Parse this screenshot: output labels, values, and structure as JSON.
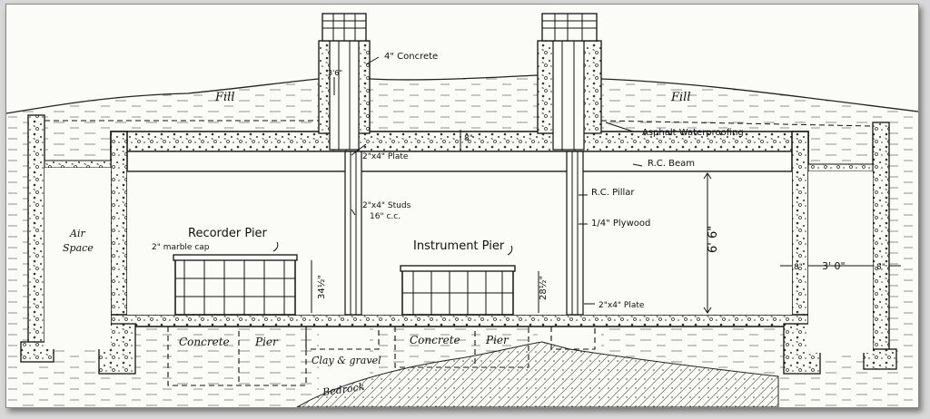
{
  "labels": {
    "concrete_4in": "4\" Concrete",
    "dim_3_6": "3'6\"",
    "fill_left": "Fill",
    "fill_right": "Fill",
    "asphalt": "Asphalt Waterproofing",
    "dim_8in_top": "8\"",
    "plate_top": "2\"x4\" Plate",
    "rc_beam": "R.C. Beam",
    "rc_pillar": "R.C. Pillar",
    "plywood": "1/4\" Plywood",
    "studs_line1": "2\"x4\" Studs",
    "studs_line2": "16\" c.c.",
    "air_line1": "Air",
    "air_line2": "Space",
    "recorder_pier": "Recorder Pier",
    "marble_cap": "2\" marble cap",
    "dim_34": "34½\"",
    "instrument_pier": "Instrument Pier",
    "dim_28": "28½\"",
    "plate_bottom": "2\"x4\" Plate",
    "dim_6_6": "6' 6\"",
    "dim_8_left": "8\"",
    "dim_3_0": "3' 0\"",
    "dim_8_right": "8\"",
    "concrete_left": "Concrete",
    "pier_left": "Pier",
    "clay": "Clay & gravel",
    "concrete_right": "Concrete",
    "pier_right": "Pier",
    "bedrock": "Bedrock"
  }
}
